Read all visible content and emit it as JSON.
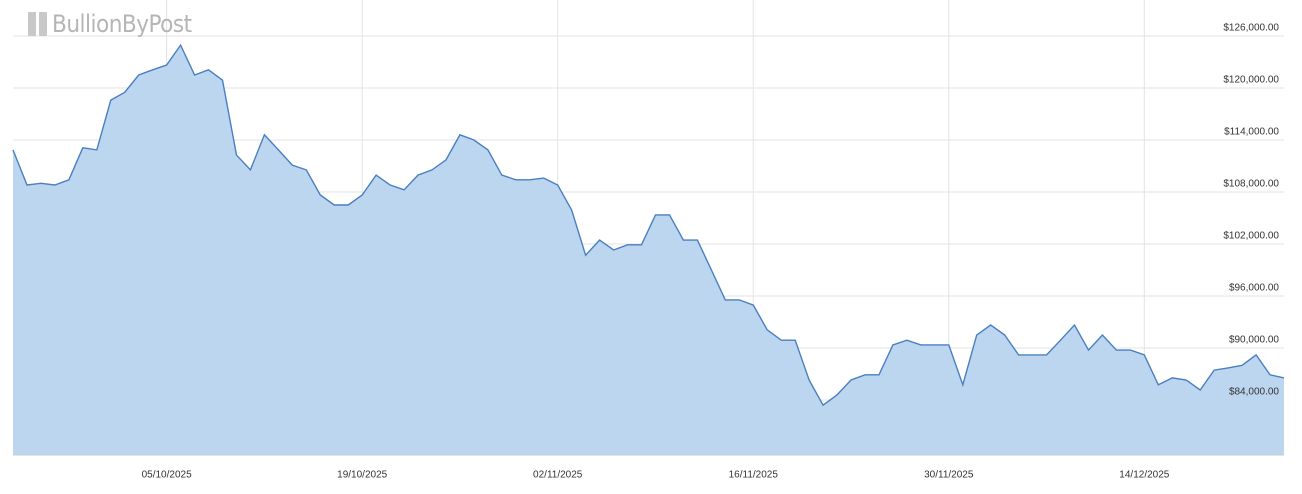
{
  "chart_data": {
    "type": "area",
    "watermark": "BullionByPost",
    "color": "#4a7fbf",
    "fill": "#bcd6f0",
    "grid": true,
    "x": [
      "24/09/2025",
      "25/09/2025",
      "26/09/2025",
      "27/09/2025",
      "28/09/2025",
      "29/09/2025",
      "30/09/2025",
      "01/10/2025",
      "02/10/2025",
      "03/10/2025",
      "04/10/2025",
      "05/10/2025",
      "06/10/2025",
      "07/10/2025",
      "08/10/2025",
      "09/10/2025",
      "10/10/2025",
      "11/10/2025",
      "12/10/2025",
      "13/10/2025",
      "14/10/2025",
      "15/10/2025",
      "16/10/2025",
      "17/10/2025",
      "18/10/2025",
      "19/10/2025",
      "20/10/2025",
      "21/10/2025",
      "22/10/2025",
      "23/10/2025",
      "24/10/2025",
      "25/10/2025",
      "26/10/2025",
      "27/10/2025",
      "28/10/2025",
      "29/10/2025",
      "30/10/2025",
      "31/10/2025",
      "01/11/2025",
      "02/11/2025",
      "03/11/2025",
      "04/11/2025",
      "05/11/2025",
      "06/11/2025",
      "07/11/2025",
      "08/11/2025",
      "09/11/2025",
      "10/11/2025",
      "11/11/2025",
      "12/11/2025",
      "13/11/2025",
      "14/11/2025",
      "15/11/2025",
      "16/11/2025",
      "17/11/2025",
      "18/11/2025",
      "19/11/2025",
      "20/11/2025",
      "21/11/2025",
      "22/11/2025",
      "23/11/2025",
      "24/11/2025",
      "25/11/2025",
      "26/11/2025",
      "27/11/2025",
      "28/11/2025",
      "29/11/2025",
      "30/11/2025",
      "01/12/2025",
      "02/12/2025",
      "03/12/2025",
      "04/12/2025",
      "05/12/2025",
      "06/12/2025",
      "07/12/2025",
      "08/12/2025",
      "09/12/2025",
      "10/12/2025",
      "11/12/2025",
      "12/12/2025",
      "13/12/2025",
      "14/12/2025",
      "15/12/2025",
      "16/12/2025",
      "17/12/2025",
      "18/12/2025",
      "19/12/2025",
      "20/12/2025",
      "21/12/2025",
      "22/12/2025",
      "23/12/2025",
      "24/12/2025"
    ],
    "values": [
      112850,
      108800,
      109000,
      108800,
      109400,
      113100,
      112850,
      118600,
      119500,
      121500,
      122100,
      122650,
      124950,
      121500,
      122100,
      120900,
      112250,
      110550,
      114600,
      112850,
      111100,
      110550,
      107650,
      106500,
      106500,
      107650,
      109950,
      108800,
      108250,
      109950,
      110550,
      111700,
      114600,
      114000,
      112850,
      109950,
      109400,
      109400,
      109600,
      108800,
      105900,
      100700,
      102450,
      101300,
      101900,
      101900,
      105350,
      105350,
      102450,
      102450,
      99000,
      95550,
      95550,
      94950,
      92100,
      90900,
      90900,
      86300,
      83400,
      84600,
      86300,
      86900,
      86900,
      90350,
      90900,
      90350,
      90350,
      90350,
      85750,
      91500,
      92650,
      91500,
      89200,
      89200,
      89200,
      90900,
      92650,
      89750,
      91500,
      89750,
      89750,
      89200,
      85750,
      86550,
      86300,
      85150,
      87450,
      87700,
      88000,
      89200,
      86900,
      86550
    ],
    "xlim": [
      "24/09/2025",
      "24/12/2025"
    ],
    "xticks": [
      "05/10/2025",
      "19/10/2025",
      "02/11/2025",
      "16/11/2025",
      "30/11/2025",
      "14/12/2025"
    ],
    "ylim": [
      77650,
      130150
    ],
    "yticks": [
      {
        "value": 84000,
        "label": "$84,000.00"
      },
      {
        "value": 90000,
        "label": "$90,000.00"
      },
      {
        "value": 96000,
        "label": "$96,000.00"
      },
      {
        "value": 102000,
        "label": "$102,000.00"
      },
      {
        "value": 108000,
        "label": "$108,000.00"
      },
      {
        "value": 114000,
        "label": "$114,000.00"
      },
      {
        "value": 120000,
        "label": "$120,000.00"
      },
      {
        "value": 126000,
        "label": "$126,000.00"
      }
    ]
  }
}
